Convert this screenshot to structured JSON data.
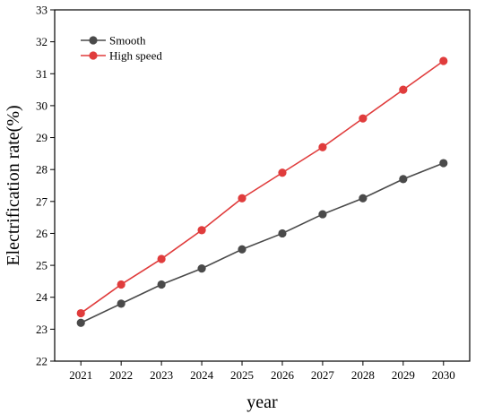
{
  "chart_data": {
    "type": "line",
    "title": "",
    "xlabel": "year",
    "ylabel": "Electrification rate(%)",
    "x": [
      2021,
      2022,
      2023,
      2024,
      2025,
      2026,
      2027,
      2028,
      2029,
      2030
    ],
    "xlim": [
      2020.35,
      2030.65
    ],
    "ylim": [
      22,
      33
    ],
    "y_ticks": [
      22,
      23,
      24,
      25,
      26,
      27,
      28,
      29,
      30,
      31,
      32,
      33
    ],
    "grid": false,
    "legend_position": "top-left",
    "series": [
      {
        "name": "Smooth",
        "color": "#4a4a4a",
        "values": [
          23.2,
          23.8,
          24.4,
          24.9,
          25.5,
          26.0,
          26.6,
          27.1,
          27.7,
          28.2
        ]
      },
      {
        "name": "High speed",
        "color": "#e03c3c",
        "values": [
          23.5,
          24.4,
          25.2,
          26.1,
          27.1,
          27.9,
          28.7,
          29.6,
          30.5,
          31.4
        ]
      }
    ]
  }
}
